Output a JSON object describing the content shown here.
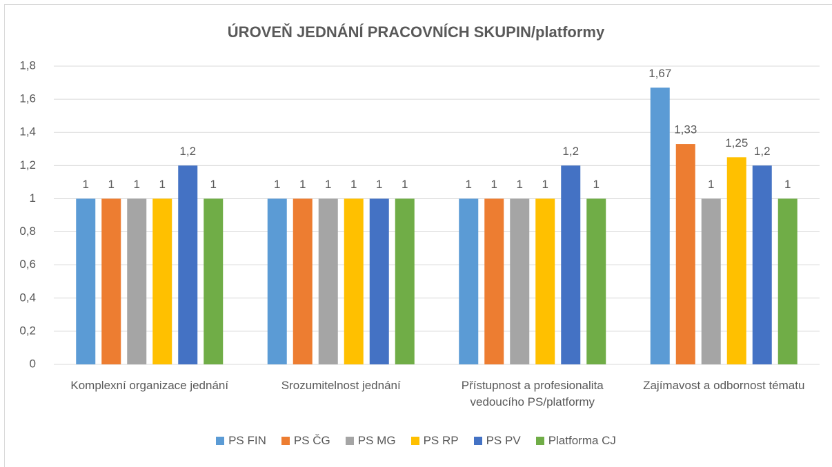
{
  "chart_data": {
    "type": "bar",
    "title": "ÚROVEŇ JEDNÁNÍ PRACOVNÍCH SKUPIN/platformy",
    "categories": [
      "Komplexní organizace jednání",
      "Srozumitelnost jednání",
      "Přístupnost a profesionalita vedoucího PS/platformy",
      "Zajímavost a odbornost tématu"
    ],
    "series": [
      {
        "name": "PS FIN",
        "color": "#5b9bd5",
        "values": [
          1,
          1,
          1,
          1.67
        ],
        "value_labels": [
          "1",
          "1",
          "1",
          "1,67"
        ]
      },
      {
        "name": "PS ČG",
        "color": "#ed7d31",
        "values": [
          1,
          1,
          1,
          1.33
        ],
        "value_labels": [
          "1",
          "1",
          "1",
          "1,33"
        ]
      },
      {
        "name": "PS MG",
        "color": "#a5a5a5",
        "values": [
          1,
          1,
          1,
          1
        ],
        "value_labels": [
          "1",
          "1",
          "1",
          "1"
        ]
      },
      {
        "name": "PS RP",
        "color": "#ffc000",
        "values": [
          1,
          1,
          1,
          1.25
        ],
        "value_labels": [
          "1",
          "1",
          "1",
          "1,25"
        ]
      },
      {
        "name": "PS PV",
        "color": "#4472c4",
        "values": [
          1.2,
          1,
          1.2,
          1.2
        ],
        "value_labels": [
          "1,2",
          "1",
          "1,2",
          "1,2"
        ]
      },
      {
        "name": "Platforma CJ",
        "color": "#70ad47",
        "values": [
          1,
          1,
          1,
          1
        ],
        "value_labels": [
          "1",
          "1",
          "1",
          "1"
        ]
      }
    ],
    "ylim": [
      0,
      1.8
    ],
    "yticks": [
      0,
      {
        "value": 0.2,
        "label": "0,2"
      },
      {
        "value": 0.4,
        "label": "0,4"
      },
      {
        "value": 0.6,
        "label": "0,6"
      },
      {
        "value": 0.8,
        "label": "0,8"
      },
      1,
      {
        "value": 1.2,
        "label": "1,2"
      },
      {
        "value": 1.4,
        "label": "1,4"
      },
      {
        "value": 1.6,
        "label": "1,6"
      },
      {
        "value": 1.8,
        "label": "1,8"
      }
    ],
    "grid": true,
    "legend": "bottom"
  }
}
